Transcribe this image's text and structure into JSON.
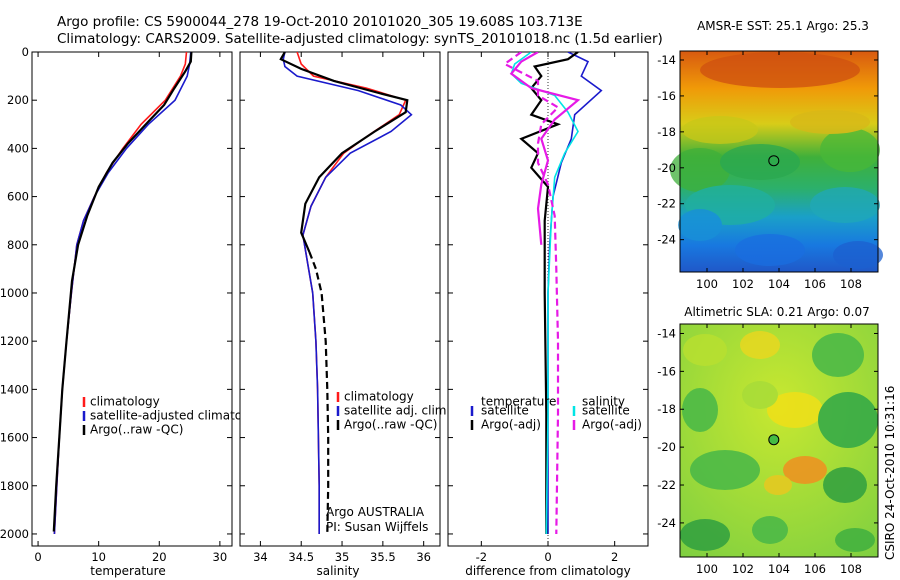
{
  "header": {
    "line1": "Argo profile: CS 5900044_278 19-Oct-2010 20101020_305 19.608S 103.713E",
    "line2": "Climatology: CARS2009. Satellite-adjusted climatology: synTS_20101018.nc (1.5d earlier)"
  },
  "credit": "CSIRO 24-Oct-2010 10:31:16",
  "colors": {
    "climatology": "#ff1a1a",
    "satellite": "#1a1acc",
    "argo": "#000000",
    "cyan": "#00e5e5",
    "magenta": "#e61ae6"
  },
  "chart_data": [
    {
      "type": "line",
      "name": "temperature-profile",
      "xlabel": "temperature",
      "ylabel": "",
      "xlim": [
        -1,
        32
      ],
      "ylim": [
        2050,
        0
      ],
      "xticks": [
        0,
        10,
        20,
        30
      ],
      "yticks": [
        0,
        200,
        400,
        600,
        800,
        1000,
        1200,
        1400,
        1600,
        1800,
        2000
      ],
      "legend": [
        "climatology",
        "satellite-adjusted climatology",
        "Argo(..raw -QC)"
      ],
      "series": [
        {
          "name": "climatology",
          "color": "#ff1a1a",
          "dash": "",
          "points": [
            [
              24.5,
              0
            ],
            [
              24.3,
              50
            ],
            [
              23.5,
              100
            ],
            [
              21,
              200
            ],
            [
              17,
              300
            ],
            [
              14,
              400
            ],
            [
              11.3,
              500
            ],
            [
              9.3,
              600
            ],
            [
              7.5,
              700
            ],
            [
              6.4,
              800
            ],
            [
              5.5,
              1000
            ],
            [
              4.7,
              1200
            ],
            [
              4,
              1400
            ],
            [
              3.5,
              1600
            ],
            [
              3.1,
              1800
            ],
            [
              2.7,
              2000
            ]
          ]
        },
        {
          "name": "satellite",
          "color": "#1a1acc",
          "dash": "",
          "points": [
            [
              25.2,
              0
            ],
            [
              25,
              50
            ],
            [
              24.6,
              100
            ],
            [
              22.6,
              200
            ],
            [
              18.2,
              300
            ],
            [
              14.6,
              400
            ],
            [
              11.6,
              500
            ],
            [
              9.3,
              600
            ],
            [
              7.5,
              700
            ],
            [
              6.4,
              800
            ],
            [
              5.5,
              1000
            ],
            [
              4.7,
              1200
            ],
            [
              4,
              1400
            ],
            [
              3.5,
              1600
            ],
            [
              3.1,
              1800
            ],
            [
              2.7,
              2000
            ]
          ]
        },
        {
          "name": "argo",
          "color": "#000000",
          "dash": "",
          "points": [
            [
              25.3,
              0
            ],
            [
              25.2,
              40
            ],
            [
              24.3,
              80
            ],
            [
              22.5,
              150
            ],
            [
              20.8,
              220
            ],
            [
              17.8,
              300
            ],
            [
              14.8,
              380
            ],
            [
              12.3,
              460
            ],
            [
              10,
              560
            ],
            [
              8.1,
              680
            ],
            [
              6.6,
              800
            ],
            [
              5.6,
              950
            ],
            [
              4.7,
              1200
            ],
            [
              4,
              1400
            ],
            [
              3.5,
              1600
            ],
            [
              3,
              1800
            ],
            [
              2.6,
              1990
            ]
          ]
        }
      ]
    },
    {
      "type": "line",
      "name": "salinity-profile",
      "xlabel": "salinity",
      "ylabel": "",
      "xlim": [
        33.75,
        36.2
      ],
      "ylim": [
        2050,
        0
      ],
      "xticks": [
        34,
        34.5,
        35,
        35.5,
        36
      ],
      "yticks": [
        0,
        200,
        400,
        600,
        800,
        1000,
        1200,
        1400,
        1600,
        1800,
        2000
      ],
      "legend": [
        "climatology",
        "satellite adj. clim.",
        "Argo(..raw -QC)"
      ],
      "credit_lines": [
        "Argo AUSTRALIA",
        "PI: Susan Wijffels"
      ],
      "series": [
        {
          "name": "climatology",
          "color": "#ff1a1a",
          "dash": "",
          "points": [
            [
              34.45,
              0
            ],
            [
              34.5,
              50
            ],
            [
              34.65,
              100
            ],
            [
              35.3,
              150
            ],
            [
              35.78,
              200
            ],
            [
              35.7,
              260
            ],
            [
              35.35,
              340
            ],
            [
              35.02,
              420
            ],
            [
              34.8,
              520
            ],
            [
              34.62,
              640
            ],
            [
              34.52,
              760
            ],
            [
              34.58,
              880
            ],
            [
              34.64,
              1000
            ],
            [
              34.68,
              1200
            ],
            [
              34.7,
              1400
            ],
            [
              34.71,
              1600
            ],
            [
              34.72,
              1800
            ],
            [
              34.72,
              2000
            ]
          ]
        },
        {
          "name": "satellite",
          "color": "#1a1acc",
          "dash": "",
          "points": [
            [
              34.3,
              0
            ],
            [
              34.28,
              30
            ],
            [
              34.3,
              60
            ],
            [
              34.45,
              100
            ],
            [
              35.2,
              160
            ],
            [
              35.72,
              220
            ],
            [
              35.85,
              260
            ],
            [
              35.6,
              330
            ],
            [
              35.1,
              420
            ],
            [
              34.8,
              520
            ],
            [
              34.62,
              640
            ],
            [
              34.52,
              760
            ],
            [
              34.58,
              880
            ],
            [
              34.64,
              1000
            ],
            [
              34.68,
              1200
            ],
            [
              34.7,
              1400
            ],
            [
              34.71,
              1600
            ],
            [
              34.72,
              1800
            ],
            [
              34.72,
              2000
            ]
          ]
        },
        {
          "name": "argo",
          "color": "#000000",
          "dash": "",
          "points": [
            [
              34.3,
              0
            ],
            [
              34.25,
              30
            ],
            [
              34.5,
              70
            ],
            [
              34.9,
              120
            ],
            [
              35.45,
              170
            ],
            [
              35.8,
              200
            ],
            [
              35.78,
              250
            ],
            [
              35.4,
              330
            ],
            [
              35,
              420
            ],
            [
              34.72,
              520
            ],
            [
              34.55,
              630
            ],
            [
              34.5,
              750
            ],
            [
              34.6,
              830
            ]
          ]
        },
        {
          "name": "argo-adj",
          "color": "#000000",
          "dash": "7,4",
          "points": [
            [
              34.6,
              830
            ],
            [
              34.68,
              900
            ],
            [
              34.75,
              1000
            ],
            [
              34.8,
              1200
            ],
            [
              34.82,
              1400
            ],
            [
              34.83,
              1600
            ],
            [
              34.83,
              1800
            ],
            [
              34.82,
              2000
            ]
          ]
        }
      ]
    },
    {
      "type": "line",
      "name": "difference-from-climatology",
      "xlabel": "difference from climatology",
      "ylabel": "",
      "xlim": [
        -3,
        3
      ],
      "ylim": [
        2050,
        0
      ],
      "xticks": [
        -2,
        0,
        2
      ],
      "yticks": [
        0,
        200,
        400,
        600,
        800,
        1000,
        1200,
        1400,
        1600,
        1800,
        2000
      ],
      "legend_headings": [
        "temperature",
        "salinity"
      ],
      "legend": [
        "satellite",
        "Argo(-adj)",
        "satellite",
        "Argo(-adj)"
      ],
      "series": [
        {
          "name": "temperature-satellite",
          "color": "#1a1acc",
          "dash": "",
          "points": [
            [
              0.6,
              0
            ],
            [
              1.2,
              40
            ],
            [
              1,
              100
            ],
            [
              1.6,
              160
            ],
            [
              0.8,
              260
            ],
            [
              0.7,
              360
            ],
            [
              0.4,
              460
            ],
            [
              0.15,
              600
            ],
            [
              0.05,
              800
            ],
            [
              0,
              1000
            ],
            [
              0,
              1500
            ],
            [
              0,
              2000
            ]
          ]
        },
        {
          "name": "temperature-argo",
          "color": "#000000",
          "dash": "",
          "points": [
            [
              0.9,
              0
            ],
            [
              0.6,
              30
            ],
            [
              -0.4,
              60
            ],
            [
              -0.2,
              100
            ],
            [
              -0.5,
              150
            ],
            [
              -0.2,
              200
            ],
            [
              -0.5,
              260
            ],
            [
              0.3,
              300
            ],
            [
              -0.8,
              360
            ],
            [
              -0.3,
              420
            ],
            [
              -0.5,
              480
            ],
            [
              0,
              560
            ],
            [
              -0.1,
              700
            ],
            [
              -0.1,
              1000
            ],
            [
              -0.05,
              1500
            ],
            [
              -0.05,
              2000
            ]
          ]
        },
        {
          "name": "salinity-satellite",
          "color": "#00e5e5",
          "dash": "",
          "points": [
            [
              -0.5,
              0
            ],
            [
              -1,
              50
            ],
            [
              -1.1,
              90
            ],
            [
              -0.8,
              130
            ],
            [
              0.2,
              180
            ],
            [
              0.6,
              250
            ],
            [
              0.9,
              330
            ],
            [
              0.5,
              420
            ],
            [
              0.2,
              520
            ],
            [
              0.1,
              700
            ],
            [
              0,
              1000
            ],
            [
              0,
              1500
            ],
            [
              -0.05,
              2000
            ]
          ]
        },
        {
          "name": "salinity-argo-adj",
          "color": "#e61ae6",
          "dash": "7,4",
          "points": [
            [
              -0.8,
              0
            ],
            [
              -1.3,
              50
            ],
            [
              -0.3,
              120
            ],
            [
              -0.3,
              180
            ],
            [
              0.3,
              230
            ],
            [
              -0.2,
              300
            ],
            [
              -0.3,
              380
            ],
            [
              -0.3,
              460
            ],
            [
              0,
              550
            ],
            [
              0.2,
              680
            ],
            [
              0.25,
              900
            ],
            [
              0.3,
              1200
            ],
            [
              0.3,
              1500
            ],
            [
              0.25,
              2000
            ]
          ]
        },
        {
          "name": "salinity-argo",
          "color": "#e61ae6",
          "dash": "",
          "points": [
            [
              -0.3,
              0
            ],
            [
              -0.8,
              40
            ],
            [
              -1.1,
              90
            ],
            [
              -0.5,
              150
            ],
            [
              0.9,
              200
            ],
            [
              0.2,
              280
            ],
            [
              -0.2,
              360
            ],
            [
              0,
              450
            ],
            [
              -0.2,
              550
            ],
            [
              -0.3,
              650
            ],
            [
              -0.2,
              800
            ]
          ]
        }
      ]
    },
    {
      "type": "heatmap",
      "name": "amsr-e-sst-map",
      "title": "AMSR-E SST: 25.1 Argo: 25.3",
      "xlim": [
        98.5,
        109.5
      ],
      "ylim": [
        -25.8,
        -13.5
      ],
      "xticks": [
        100,
        102,
        104,
        106,
        108
      ],
      "yticks": [
        -14,
        -16,
        -18,
        -20,
        -22,
        -24
      ],
      "marker": [
        103.713,
        -19.608
      ],
      "marker_fill": "none"
    },
    {
      "type": "heatmap",
      "name": "altimetric-sla-map",
      "title": "Altimetric SLA: 0.21 Argo: 0.07",
      "xlim": [
        98.5,
        109.5
      ],
      "ylim": [
        -25.8,
        -13.5
      ],
      "xticks": [
        100,
        102,
        104,
        106,
        108
      ],
      "yticks": [
        -14,
        -16,
        -18,
        -20,
        -22,
        -24
      ],
      "marker": [
        103.713,
        -19.608
      ],
      "marker_fill": "#44bb44"
    }
  ]
}
